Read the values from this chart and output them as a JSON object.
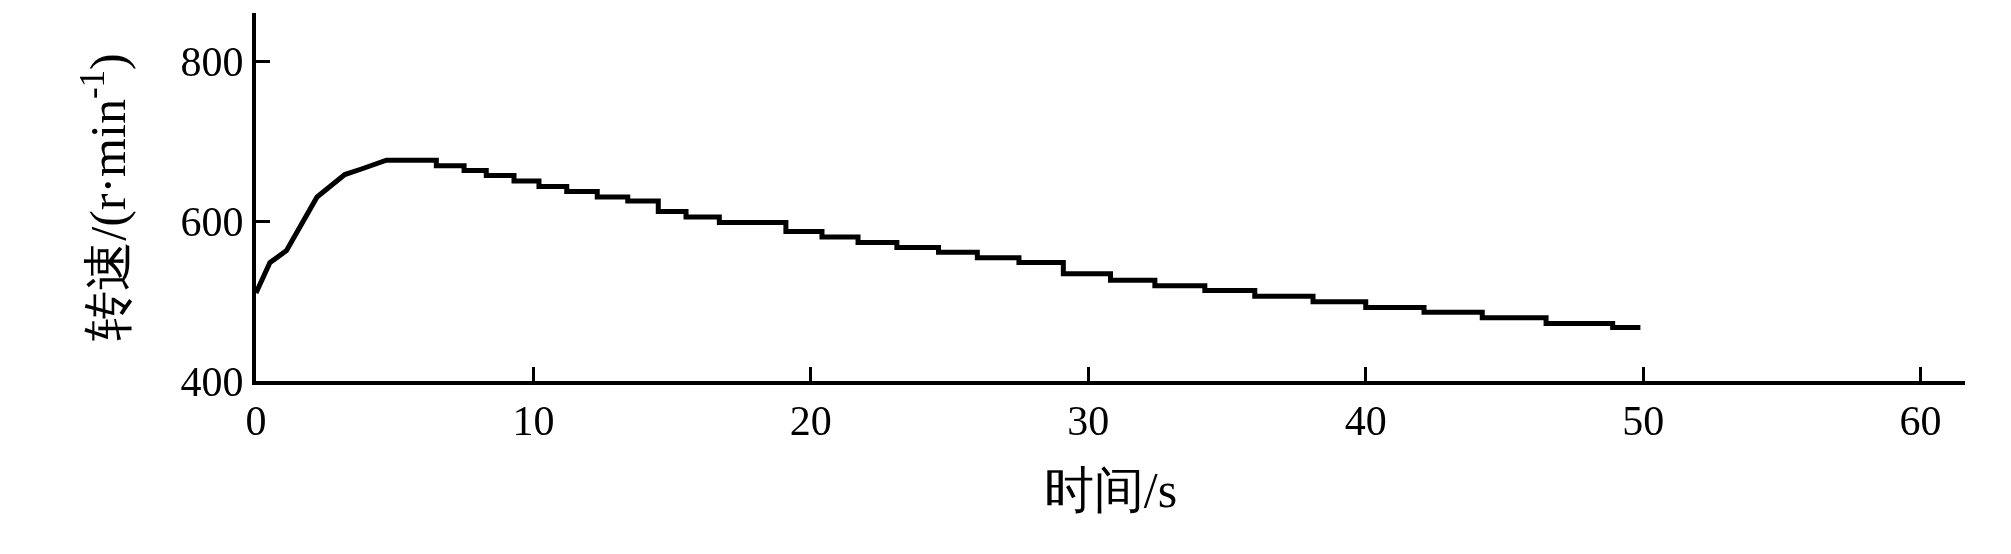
{
  "chart_data": {
    "type": "line",
    "xlabel": "时间/s",
    "ylabel": "转速/(r·min$^{-1}$)",
    "x": [
      0,
      0.5,
      1.1,
      2.2,
      2.7,
      3.2,
      3.8,
      4.7,
      6.5,
      6.5,
      7.5,
      7.5,
      8.3,
      8.3,
      9.3,
      9.3,
      10.2,
      10.2,
      11.2,
      11.2,
      12.3,
      12.3,
      13.4,
      13.4,
      14.5,
      14.5,
      15.5,
      15.5,
      16.7,
      16.7,
      19.1,
      19.1,
      20.4,
      20.4,
      21.7,
      21.7,
      23.1,
      23.1,
      24.6,
      24.6,
      26.0,
      26.0,
      27.5,
      27.5,
      29.1,
      29.1,
      30.8,
      30.8,
      32.4,
      32.4,
      34.2,
      34.2,
      36.0,
      36.0,
      38.1,
      38.1,
      40.0,
      40.0,
      42.1,
      42.1,
      44.2,
      44.2,
      46.5,
      46.5,
      48.9,
      48.9,
      49.9
    ],
    "series": [
      {
        "color": "#000000",
        "values": [
          510,
          548,
          563,
          630,
          644,
          658,
          665,
          676,
          676,
          669,
          669,
          663,
          663,
          657,
          657,
          650,
          650,
          643,
          643,
          637,
          637,
          630,
          630,
          625,
          625,
          612,
          612,
          605,
          605,
          598,
          598,
          587,
          587,
          580,
          580,
          573,
          573,
          567,
          567,
          561,
          561,
          554,
          554,
          548,
          548,
          534,
          534,
          526,
          526,
          519,
          519,
          513,
          513,
          506,
          506,
          499,
          499,
          492,
          492,
          486,
          486,
          479,
          479,
          472,
          472,
          467,
          467
        ]
      }
    ],
    "xlim": [
      0,
      61.6
    ],
    "ylim": [
      400,
      860
    ],
    "xticks": [
      0,
      10,
      20,
      30,
      40,
      50,
      60
    ],
    "yticks": [
      400,
      600,
      800
    ],
    "marker": "none",
    "line_style": "solid"
  }
}
